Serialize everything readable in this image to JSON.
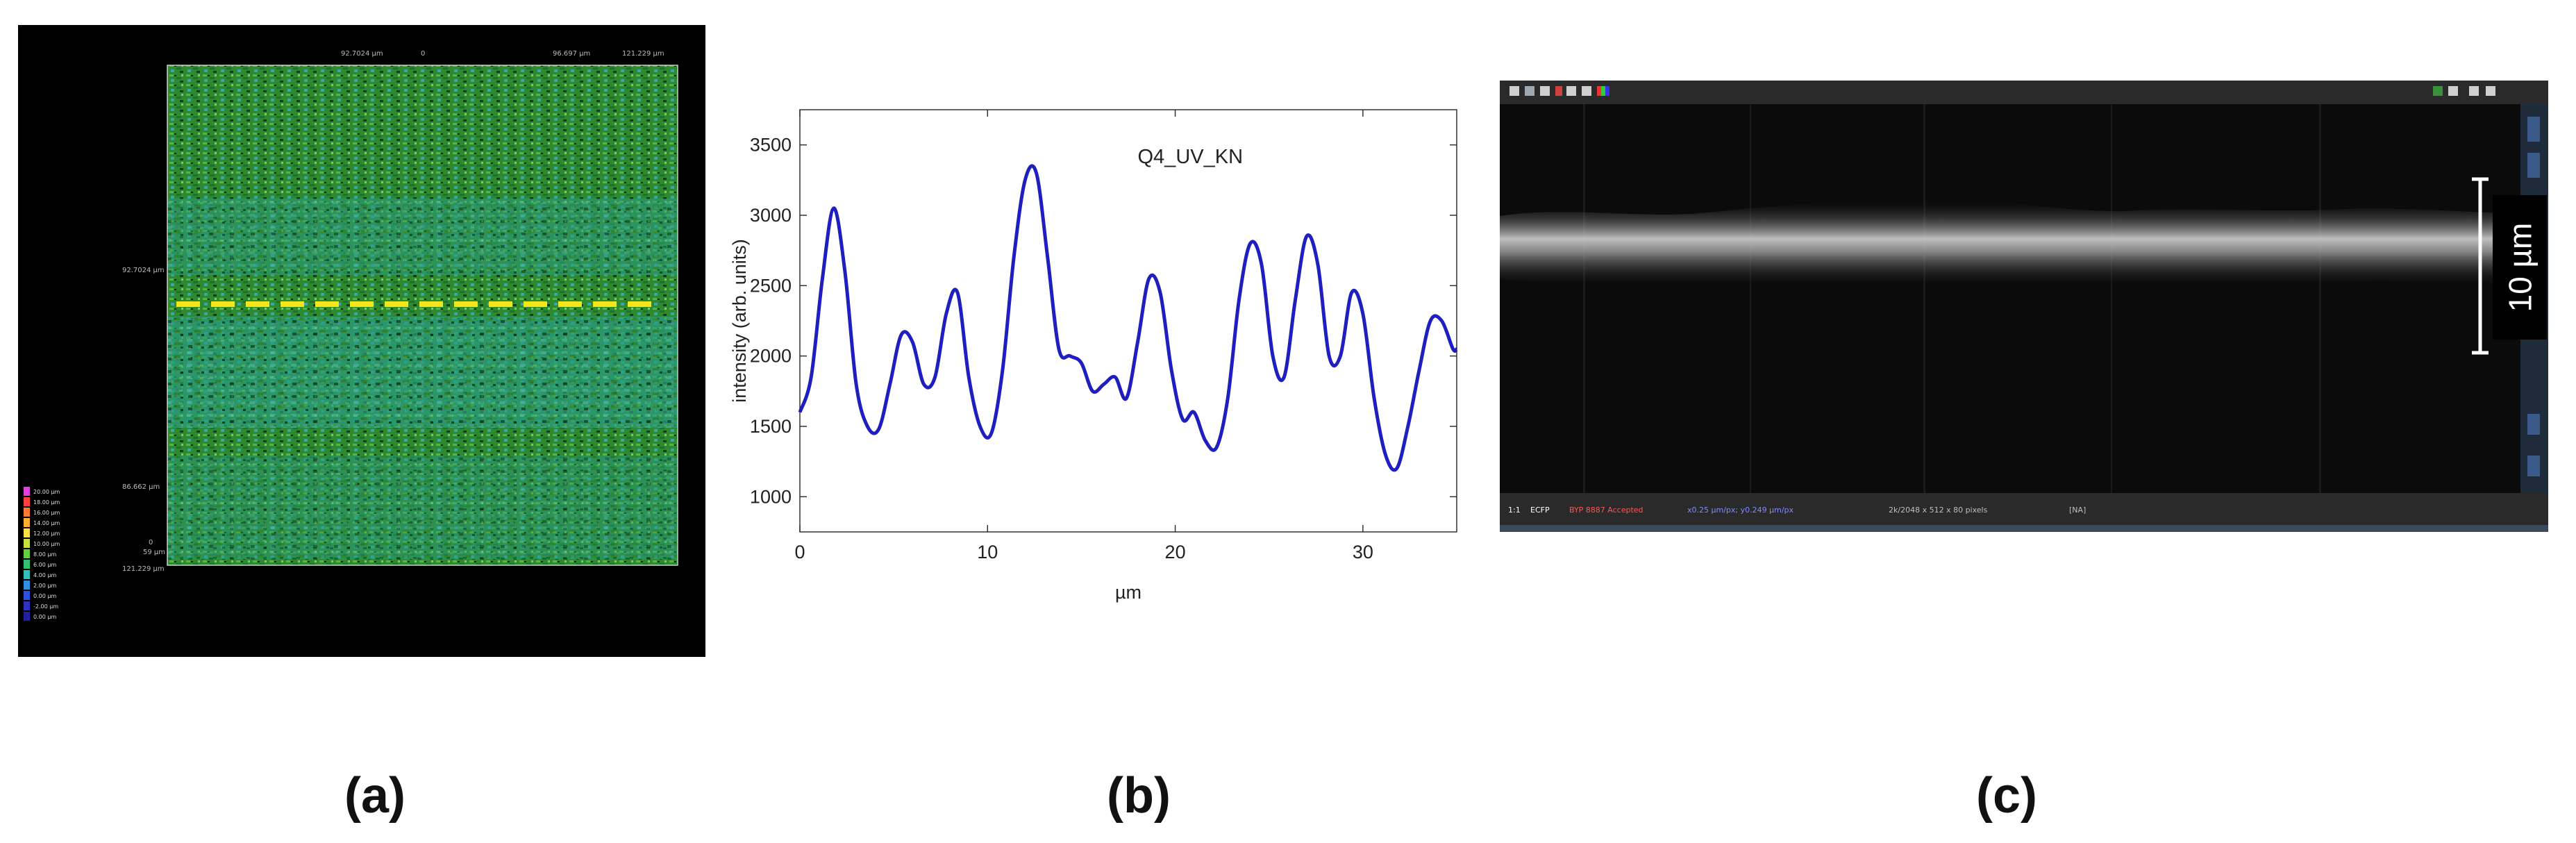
{
  "panels": {
    "a": {
      "caption": "(a)",
      "axis_labels": {
        "top_left": "92.7024 µm",
        "top_mid": "0",
        "top_right_1": "96.697 µm",
        "top_right_2": "121.229 µm",
        "left_mid": "92.7024 µm",
        "left_low": "86.662 µm",
        "bottom_left": "121.229 µm",
        "corner_0": "0",
        "corner_val": "59 µm"
      },
      "color_legend": [
        "20.00 µm",
        "18.00 µm",
        "16.00 µm",
        "14.00 µm",
        "12.00 µm",
        "10.00 µm",
        "8.00 µm",
        "6.00 µm",
        "4.00 µm",
        "2.00 µm",
        "0.00 µm",
        "-2.00 µm",
        "0.00 µm"
      ],
      "colors": {
        "background": "#000000",
        "surface": "#2f8f2e",
        "profile_line": "#f5e61c"
      }
    },
    "b": {
      "caption": "(b)"
    },
    "c": {
      "caption": "(c)",
      "scale_bar_label": "10 µm",
      "status_bar": {
        "zoom": "1:1",
        "channel": "ECFP",
        "mode": "BYP 8887 Accepted",
        "info": "x0.25 µm/px; y0.249 µm/px",
        "size": "2k/2048 x 512 x 80 pixels",
        "extra": "[NA]"
      },
      "colors": {
        "background": "#0b0b0b",
        "band": "#bfbfbf",
        "toolbar": "#2a2a2a"
      }
    }
  },
  "chart_data": {
    "type": "line",
    "annotation": "Q4_UV_KN",
    "xlabel": "µm",
    "ylabel": "intensity (arb. units)",
    "xlim": [
      0,
      35
    ],
    "ylim": [
      750,
      3750
    ],
    "xticks": [
      0,
      10,
      20,
      30
    ],
    "yticks": [
      1000,
      1500,
      2000,
      2500,
      3000,
      3500
    ],
    "series": [
      {
        "color": "#1f1fbf",
        "x": [
          0,
          0.6,
          1.2,
          1.8,
          2.4,
          3.0,
          3.6,
          4.2,
          4.8,
          5.4,
          6.0,
          6.6,
          7.2,
          7.8,
          8.4,
          9.0,
          9.6,
          10.2,
          10.8,
          11.4,
          12.0,
          12.6,
          13.2,
          13.8,
          14.4,
          15.0,
          15.6,
          16.2,
          16.8,
          17.4,
          18.0,
          18.6,
          19.2,
          19.8,
          20.4,
          21.0,
          21.6,
          22.2,
          22.8,
          23.4,
          24.0,
          24.6,
          25.2,
          25.8,
          26.4,
          27.0,
          27.6,
          28.2,
          28.8,
          29.4,
          30.0,
          30.6,
          31.2,
          31.8,
          32.4,
          33.0,
          33.6,
          34.2,
          34.8,
          35.0
        ],
        "y": [
          1600,
          1850,
          2550,
          3050,
          2600,
          1800,
          1500,
          1480,
          1800,
          2150,
          2100,
          1800,
          1850,
          2300,
          2450,
          1850,
          1500,
          1450,
          1900,
          2700,
          3250,
          3300,
          2700,
          2050,
          2000,
          1950,
          1750,
          1800,
          1850,
          1700,
          2100,
          2550,
          2450,
          1900,
          1550,
          1600,
          1400,
          1350,
          1700,
          2400,
          2800,
          2650,
          2000,
          1850,
          2400,
          2850,
          2650,
          2000,
          2000,
          2450,
          2300,
          1700,
          1300,
          1200,
          1500,
          1900,
          2250,
          2250,
          2050,
          2050
        ]
      }
    ]
  }
}
